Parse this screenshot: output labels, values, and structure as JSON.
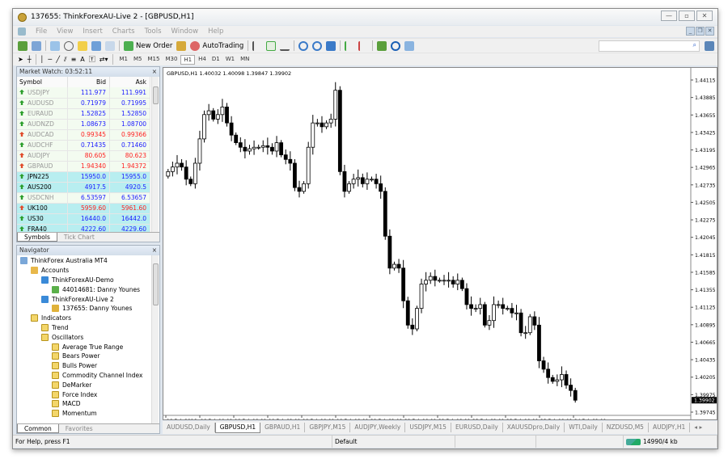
{
  "window": {
    "title": "137655: ThinkForexAU-Live 2 - [GBPUSD,H1]",
    "controls": [
      "—",
      "▫",
      "✕"
    ]
  },
  "menu": [
    "File",
    "View",
    "Insert",
    "Charts",
    "Tools",
    "Window",
    "Help"
  ],
  "toolbar": {
    "new_order": "New Order",
    "autotrading": "AutoTrading",
    "drawing_text": "A",
    "timeframes": [
      "M1",
      "M5",
      "M15",
      "M30",
      "H1",
      "H4",
      "D1",
      "W1",
      "MN"
    ],
    "active_timeframe": "H1",
    "search_icon": "⌕"
  },
  "market_watch": {
    "title": "Market Watch: 03:52:11",
    "columns": [
      "Symbol",
      "Bid",
      "Ask"
    ],
    "rows": [
      {
        "symbol": "USDJPY",
        "bid": "111.977",
        "ask": "111.991",
        "dir": "up",
        "hl": false,
        "dim": true
      },
      {
        "symbol": "AUDUSD",
        "bid": "0.71979",
        "ask": "0.71995",
        "dir": "up",
        "hl": false,
        "dim": true
      },
      {
        "symbol": "EURAUD",
        "bid": "1.52825",
        "ask": "1.52850",
        "dir": "up",
        "hl": false,
        "dim": true
      },
      {
        "symbol": "AUDNZD",
        "bid": "1.08673",
        "ask": "1.08700",
        "dir": "up",
        "hl": false,
        "dim": true
      },
      {
        "symbol": "AUDCAD",
        "bid": "0.99345",
        "ask": "0.99366",
        "dir": "down",
        "hl": false,
        "dim": true
      },
      {
        "symbol": "AUDCHF",
        "bid": "0.71435",
        "ask": "0.71460",
        "dir": "up",
        "hl": false,
        "dim": true
      },
      {
        "symbol": "AUDJPY",
        "bid": "80.605",
        "ask": "80.623",
        "dir": "down",
        "hl": false,
        "dim": true
      },
      {
        "symbol": "GBPAUD",
        "bid": "1.94340",
        "ask": "1.94372",
        "dir": "down",
        "hl": false,
        "dim": true
      },
      {
        "symbol": "JPN225",
        "bid": "15950.0",
        "ask": "15955.0",
        "dir": "up",
        "hl": true,
        "dim": false
      },
      {
        "symbol": "AUS200",
        "bid": "4917.5",
        "ask": "4920.5",
        "dir": "up",
        "hl": true,
        "dim": false
      },
      {
        "symbol": "USDCNH",
        "bid": "6.53597",
        "ask": "6.53657",
        "dir": "up",
        "hl": false,
        "dim": true
      },
      {
        "symbol": "UK100",
        "bid": "5959.60",
        "ask": "5961.60",
        "dir": "down",
        "hl": true,
        "dim": false
      },
      {
        "symbol": "US30",
        "bid": "16440.0",
        "ask": "16442.0",
        "dir": "up",
        "hl": true,
        "dim": false
      },
      {
        "symbol": "FRA40",
        "bid": "4222.60",
        "ask": "4229.60",
        "dir": "up",
        "hl": true,
        "dim": false
      }
    ],
    "tabs": [
      "Symbols",
      "Tick Chart"
    ]
  },
  "navigator": {
    "title": "Navigator",
    "items": [
      {
        "label": "ThinkForex Australia MT4",
        "level": 0,
        "icon": "terminal"
      },
      {
        "label": "Accounts",
        "level": 1,
        "icon": "accounts"
      },
      {
        "label": "ThinkForexAU-Demo",
        "level": 2,
        "icon": "server"
      },
      {
        "label": "44014681: Danny Younes",
        "level": 3,
        "icon": "user-green"
      },
      {
        "label": "ThinkForexAU-Live 2",
        "level": 2,
        "icon": "server"
      },
      {
        "label": "137655: Danny Younes",
        "level": 3,
        "icon": "user-gold"
      },
      {
        "label": "Indicators",
        "level": 1,
        "icon": "folder"
      },
      {
        "label": "Trend",
        "level": 2,
        "icon": "folder"
      },
      {
        "label": "Oscillators",
        "level": 2,
        "icon": "folder"
      },
      {
        "label": "Average True Range",
        "level": 3,
        "icon": "indicator"
      },
      {
        "label": "Bears Power",
        "level": 3,
        "icon": "indicator"
      },
      {
        "label": "Bulls Power",
        "level": 3,
        "icon": "indicator"
      },
      {
        "label": "Commodity Channel Index",
        "level": 3,
        "icon": "indicator"
      },
      {
        "label": "DeMarker",
        "level": 3,
        "icon": "indicator"
      },
      {
        "label": "Force Index",
        "level": 3,
        "icon": "indicator"
      },
      {
        "label": "MACD",
        "level": 3,
        "icon": "indicator"
      },
      {
        "label": "Momentum",
        "level": 3,
        "icon": "indicator"
      }
    ],
    "tabs": [
      "Common",
      "Favorites"
    ]
  },
  "chart_data": {
    "type": "candlestick",
    "symbol_header": "GBPUSD,H1  1.40032 1.40098 1.39847 1.39902",
    "ylim": [
      1.3965,
      1.442
    ],
    "y_ticks": [
      "1.44115",
      "1.43885",
      "1.43655",
      "1.43425",
      "1.43195",
      "1.42965",
      "1.42735",
      "1.42505",
      "1.42275",
      "1.42045",
      "1.41815",
      "1.41585",
      "1.41355",
      "1.41125",
      "1.40895",
      "1.40665",
      "1.40435",
      "1.40205",
      "1.39975",
      "1.39745"
    ],
    "current_price": "1.39902",
    "x_ticks": [
      "18 Feb 2016",
      "18 Feb 10:00",
      "18 Feb 18:00",
      "19 Feb 02:00",
      "19 Feb 10:00",
      "19 Feb 18:00",
      "22 Feb 02:00",
      "22 Feb 10:00",
      "22 Feb 18:00",
      "23 Feb 02:00",
      "23 Feb 10:00",
      "23 Feb 18:00",
      "24 Feb 02:00"
    ],
    "close": [
      1.4291,
      1.4297,
      1.4302,
      1.4297,
      1.4281,
      1.4275,
      1.4302,
      1.4334,
      1.4366,
      1.4371,
      1.436,
      1.4366,
      1.4376,
      1.4355,
      1.4339,
      1.4329,
      1.4323,
      1.4318,
      1.4321,
      1.4323,
      1.4323,
      1.4325,
      1.4323,
      1.4318,
      1.4329,
      1.4313,
      1.4307,
      1.4302,
      1.427,
      1.4265,
      1.4275,
      1.4323,
      1.4355,
      1.4355,
      1.435,
      1.4355,
      1.436,
      1.4398,
      1.4291,
      1.4265,
      1.4275,
      1.4281,
      1.4283,
      1.4275,
      1.4281,
      1.4281,
      1.4275,
      1.4265,
      1.4206,
      1.4164,
      1.4169,
      1.4164,
      1.4121,
      1.4089,
      1.4084,
      1.4111,
      1.4143,
      1.4148,
      1.4153,
      1.4148,
      1.4148,
      1.4148,
      1.4148,
      1.4143,
      1.4148,
      1.4137,
      1.4116,
      1.4111,
      1.4111,
      1.4116,
      1.4089,
      1.4095,
      1.4116,
      1.4116,
      1.4111,
      1.4111,
      1.4105,
      1.4105,
      1.4079,
      1.4079,
      1.41,
      1.4089,
      1.4042,
      1.4031,
      1.402,
      1.4015,
      1.4017,
      1.4024,
      1.401,
      1.4003,
      1.39902
    ]
  },
  "tabs": [
    "AUDUSD,Daily",
    "GBPUSD,H1",
    "GBPAUD,H1",
    "GBPJPY,M15",
    "AUDJPY,Weekly",
    "USDJPY,M15",
    "EURUSD,Daily",
    "XAUUSDpro,Daily",
    "WTI,Daily",
    "NZDUSD,M5",
    "AUDJPY,H1"
  ],
  "active_tab": "GBPUSD,H1",
  "status": {
    "help": "For Help, press F1",
    "profile": "Default",
    "traffic": "14990/4 kb"
  },
  "colors": {
    "up": "#2a9d2a",
    "down": "#e04a2a",
    "bid_up": "#1a1aff",
    "bid_down": "#ff2020",
    "highlight": "#b8eef0"
  }
}
